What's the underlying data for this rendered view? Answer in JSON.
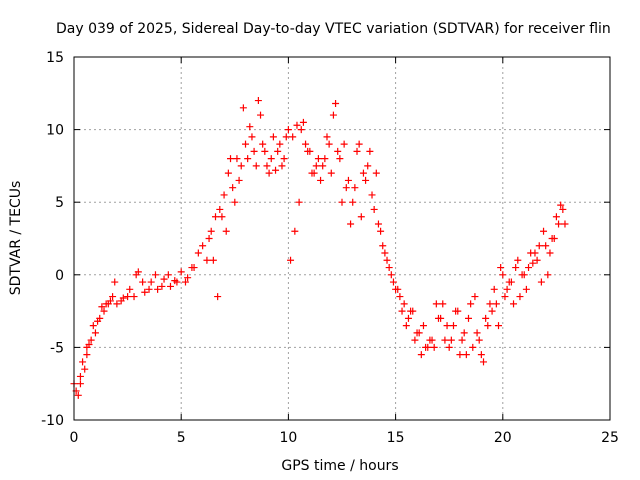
{
  "chart_data": {
    "type": "scatter",
    "title": "Day 039 of 2025, Sidereal Day-to-day VTEC variation (SDTVAR) for receiver flin",
    "xlabel": "GPS time / hours",
    "ylabel": "SDTVAR / TECUs",
    "xlim": [
      0,
      25
    ],
    "ylim": [
      -10,
      15
    ],
    "x_ticks": [
      0,
      5,
      10,
      15,
      20,
      25
    ],
    "y_ticks": [
      -10,
      -5,
      0,
      5,
      10,
      15
    ],
    "x_tick_labels": [
      "0",
      "5",
      "10",
      "15",
      "20",
      "25"
    ],
    "y_tick_labels": [
      "-10",
      "-5",
      "0",
      "5",
      "10",
      "15"
    ],
    "grid": true,
    "marker": "plus",
    "color": "#ff0000",
    "series": [
      {
        "x": [
          0.0,
          0.2,
          0.3,
          0.5,
          0.6,
          0.8,
          1.0,
          1.2,
          1.4,
          1.6,
          1.8,
          2.0,
          2.2,
          2.5,
          2.8,
          3.0,
          3.3,
          3.6,
          3.9,
          4.2,
          4.5,
          4.8,
          5.0,
          5.3,
          5.6,
          5.8,
          6.0,
          6.2,
          6.4,
          6.6,
          6.8,
          7.0,
          7.2,
          7.4,
          7.6,
          7.8,
          8.0,
          8.2,
          8.4,
          8.6,
          8.8,
          9.0,
          9.2,
          9.4,
          9.6,
          9.8,
          10.0,
          10.2,
          10.4,
          10.6,
          10.8,
          11.0,
          11.2,
          11.4,
          11.6,
          11.8,
          12.0,
          12.2,
          12.4,
          12.6,
          12.8,
          13.0,
          13.2,
          13.4,
          13.6,
          13.8,
          14.0,
          14.2,
          14.4,
          14.6,
          14.8,
          15.0,
          15.2,
          15.4,
          15.6,
          15.8,
          16.0,
          16.2,
          16.4,
          16.6,
          16.8,
          17.0,
          17.2,
          17.4,
          17.6,
          17.8,
          18.0,
          18.2,
          18.4,
          18.6,
          18.8,
          19.0,
          19.2,
          19.4,
          19.6,
          19.8,
          20.0,
          20.2,
          20.4,
          20.6,
          20.8,
          21.0,
          21.2,
          21.4,
          21.6,
          21.8,
          22.0,
          22.2,
          22.4,
          22.6,
          22.8,
          22.9
        ],
        "y": [
          -7.5,
          -8.3,
          -7.0,
          -6.5,
          -5.5,
          -4.5,
          -4.0,
          -3.0,
          -2.5,
          -2.0,
          -1.5,
          -2.0,
          -1.8,
          -1.5,
          -1.5,
          0.2,
          -1.2,
          -0.5,
          -1.0,
          -0.3,
          -0.8,
          -0.5,
          0.2,
          -0.2,
          0.5,
          1.5,
          2.0,
          1.0,
          3.0,
          4.0,
          4.5,
          5.5,
          7.0,
          6.0,
          8.0,
          7.5,
          9.0,
          10.2,
          8.5,
          12.0,
          9.0,
          7.5,
          8.0,
          7.2,
          9.0,
          8.0,
          10.0,
          9.5,
          10.3,
          10.0,
          9.0,
          8.5,
          7.0,
          8.0,
          7.5,
          9.5,
          7.0,
          11.8,
          8.0,
          9.0,
          6.5,
          5.0,
          8.5,
          4.0,
          6.5,
          8.5,
          4.5,
          3.5,
          2.0,
          1.0,
          0.0,
          -1.0,
          -1.5,
          -2.0,
          -3.0,
          -2.5,
          -4.0,
          -5.5,
          -5.0,
          -4.5,
          -5.0,
          -3.0,
          -2.0,
          -3.5,
          -4.5,
          -2.5,
          -5.5,
          -4.0,
          -3.0,
          -5.0,
          -4.0,
          -5.5,
          -3.0,
          -2.0,
          -1.0,
          -3.5,
          0.0,
          -1.0,
          -0.5,
          0.5,
          -1.5,
          0.0,
          0.5,
          0.8,
          1.0,
          -0.5,
          2.0,
          1.5,
          2.5,
          3.5,
          4.5,
          3.5
        ]
      },
      {
        "x": [
          0.1,
          0.3,
          0.4,
          0.6,
          0.7,
          0.9,
          1.1,
          1.3,
          1.5,
          1.7,
          1.9,
          2.3,
          2.6,
          2.9,
          3.2,
          3.5,
          3.8,
          4.1,
          4.4,
          4.7,
          5.2,
          5.5,
          6.3,
          6.5,
          6.7,
          6.9,
          7.1,
          7.3,
          7.5,
          7.7,
          7.9,
          8.1,
          8.3,
          8.5,
          8.7,
          8.9,
          9.1,
          9.3,
          9.5,
          9.7,
          9.9,
          10.1,
          10.3,
          10.5,
          10.7,
          10.9,
          11.1,
          11.3,
          11.5,
          11.7,
          11.9,
          12.1,
          12.3,
          12.5,
          12.7,
          12.9,
          13.1,
          13.3,
          13.5,
          13.7,
          13.9,
          14.1,
          14.3,
          14.5,
          14.7,
          14.9,
          15.1,
          15.3,
          15.5,
          15.7,
          15.9,
          16.1,
          16.3,
          16.5,
          16.7,
          16.9,
          17.1,
          17.3,
          17.5,
          17.7,
          17.9,
          18.1,
          18.3,
          18.5,
          18.7,
          18.9,
          19.1,
          19.3,
          19.5,
          19.7,
          19.9,
          20.1,
          20.3,
          20.5,
          20.7,
          20.9,
          21.1,
          21.3,
          21.5,
          21.7,
          21.9,
          22.1,
          22.3,
          22.5,
          22.7
        ],
        "y": [
          -8.0,
          -7.5,
          -6.0,
          -5.0,
          -4.8,
          -3.5,
          -3.2,
          -2.2,
          -2.0,
          -1.8,
          -0.5,
          -1.6,
          -1.0,
          0.0,
          -0.5,
          -1.0,
          0.0,
          -0.8,
          0.0,
          -0.4,
          -0.5,
          0.5,
          2.5,
          1.0,
          -1.5,
          4.0,
          3.0,
          8.0,
          5.0,
          6.5,
          11.5,
          8.0,
          9.5,
          7.5,
          11.0,
          8.5,
          7.0,
          9.5,
          8.5,
          7.5,
          9.5,
          1.0,
          3.0,
          5.0,
          10.5,
          8.5,
          7.0,
          7.5,
          6.5,
          8.0,
          9.0,
          11.0,
          8.5,
          5.0,
          6.0,
          3.5,
          6.0,
          9.0,
          7.0,
          7.5,
          5.5,
          7.0,
          3.0,
          1.5,
          0.5,
          -0.5,
          -1.0,
          -2.5,
          -3.5,
          -2.5,
          -4.5,
          -4.0,
          -3.5,
          -5.0,
          -4.5,
          -2.0,
          -3.0,
          -4.5,
          -5.0,
          -3.5,
          -2.5,
          -4.5,
          -5.5,
          -2.0,
          -1.5,
          -4.5,
          -6.0,
          -3.5,
          -2.5,
          -2.0,
          0.5,
          -1.5,
          -0.5,
          -2.0,
          1.0,
          0.0,
          -1.0,
          1.5,
          1.5,
          2.0,
          3.0,
          0.0,
          2.5,
          4.0,
          4.8
        ]
      }
    ]
  }
}
